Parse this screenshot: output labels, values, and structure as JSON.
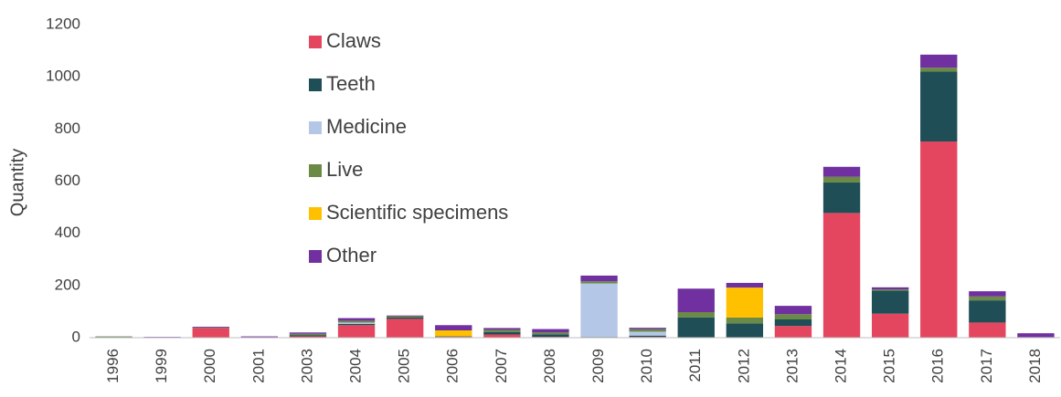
{
  "chart_data": {
    "type": "stacked_bar",
    "y_label": "Quantity",
    "categories": [
      "1996",
      "1999",
      "2000",
      "2001",
      "2003",
      "2004",
      "2005",
      "2006",
      "2007",
      "2008",
      "2009",
      "2010",
      "2011",
      "2012",
      "2013",
      "2014",
      "2015",
      "2016",
      "2017",
      "2018"
    ],
    "series": [
      {
        "name": "Claws",
        "color": "#e3465e",
        "values": [
          2,
          1,
          37,
          0,
          5,
          48,
          72,
          3,
          12,
          3,
          2,
          3,
          0,
          0,
          45,
          478,
          92,
          752,
          58,
          2
        ]
      },
      {
        "name": "Teeth",
        "color": "#1f4e57",
        "values": [
          1,
          0,
          0,
          0,
          5,
          5,
          5,
          2,
          10,
          10,
          1,
          5,
          78,
          55,
          25,
          117,
          88,
          268,
          85,
          0
        ]
      },
      {
        "name": "Medicine",
        "color": "#b4c7e7",
        "values": [
          0,
          0,
          0,
          2,
          0,
          5,
          0,
          0,
          0,
          0,
          205,
          15,
          0,
          0,
          0,
          0,
          0,
          0,
          0,
          0
        ]
      },
      {
        "name": "Live",
        "color": "#6a8a45",
        "values": [
          2,
          0,
          2,
          0,
          5,
          7,
          5,
          0,
          8,
          7,
          8,
          10,
          20,
          22,
          20,
          22,
          5,
          15,
          15,
          0
        ]
      },
      {
        "name": "Scientific specimens",
        "color": "#ffc000",
        "values": [
          0,
          0,
          0,
          0,
          0,
          0,
          0,
          23,
          0,
          0,
          0,
          0,
          0,
          115,
          0,
          0,
          0,
          0,
          0,
          0
        ]
      },
      {
        "name": "Other",
        "color": "#7030a0",
        "values": [
          0,
          2,
          3,
          3,
          5,
          10,
          3,
          20,
          7,
          13,
          22,
          5,
          90,
          18,
          32,
          38,
          8,
          50,
          20,
          15
        ]
      }
    ],
    "ylim": [
      0,
      1200
    ],
    "yticks": [
      0,
      200,
      400,
      600,
      800,
      1000,
      1200
    ],
    "grid": false,
    "legend": "top-left"
  }
}
